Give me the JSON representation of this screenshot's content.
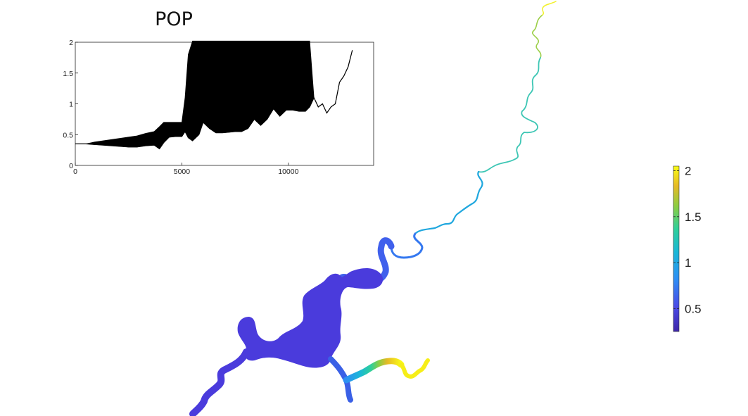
{
  "chart_data": [
    {
      "type": "line",
      "title": "POP",
      "xlabel": "",
      "ylabel": "",
      "xlim": [
        0,
        14000
      ],
      "ylim": [
        0,
        2
      ],
      "x_ticks": [
        "0",
        "5000",
        "10000"
      ],
      "y_ticks": [
        "0",
        "0.5",
        "1",
        "1.5",
        "2"
      ],
      "line_color": "#000000",
      "series": [
        {
          "x": [
            0,
            500,
            900,
            1300,
            1700,
            2100,
            2500,
            2900,
            3300,
            3700,
            3950,
            4150,
            4400,
            4700,
            5000,
            5150,
            5300,
            5500,
            5800,
            6000,
            6300,
            6600,
            6900,
            7200,
            7500,
            7800,
            8100,
            8400,
            8700,
            9000,
            9300,
            9600,
            9900,
            10200,
            10500,
            10800,
            11000,
            11200,
            11400,
            11600,
            11800,
            12000,
            12200,
            12400,
            12600,
            12800,
            13000
          ],
          "y_low": [
            0.35,
            0.35,
            0.34,
            0.33,
            0.32,
            0.31,
            0.3,
            0.3,
            0.32,
            0.33,
            0.27,
            0.37,
            0.46,
            0.47,
            0.47,
            0.55,
            0.45,
            0.4,
            0.5,
            0.7,
            0.6,
            0.53,
            0.53,
            0.54,
            0.55,
            0.55,
            0.6,
            0.75,
            0.65,
            0.75,
            0.92,
            0.8,
            0.9,
            0.9,
            0.88,
            0.88,
            0.95,
            1.1,
            0.95,
            1.0,
            0.85,
            0.95,
            1.0,
            1.35,
            1.45,
            1.6,
            1.87
          ],
          "y_high": [
            0.35,
            0.35,
            0.38,
            0.4,
            0.42,
            0.44,
            0.46,
            0.48,
            0.52,
            0.55,
            0.63,
            0.7,
            0.7,
            0.7,
            0.7,
            1.1,
            1.8,
            2.02,
            2.02,
            2.02,
            2.02,
            2.02,
            2.02,
            2.02,
            2.02,
            2.02,
            2.02,
            2.02,
            2.02,
            2.02,
            2.02,
            2.02,
            2.02,
            2.02,
            2.02,
            2.02,
            2.02,
            1.1,
            0.95,
            1.0,
            0.85,
            0.95,
            1.0,
            1.35,
            1.45,
            1.6,
            1.87
          ]
        }
      ]
    },
    {
      "type": "heatmap",
      "colormap": [
        "#3e26a8",
        "#4a4ae6",
        "#2d8ff4",
        "#1ab7d6",
        "#2fcf9a",
        "#8dcd41",
        "#e6ba26",
        "#f9fb15"
      ],
      "clim": [
        0.25,
        2.05
      ],
      "colorbar_ticks": [
        "0.5",
        "1",
        "1.5",
        "2"
      ],
      "colorbar_tick_values": [
        0.5,
        1,
        1.5,
        2
      ]
    }
  ]
}
